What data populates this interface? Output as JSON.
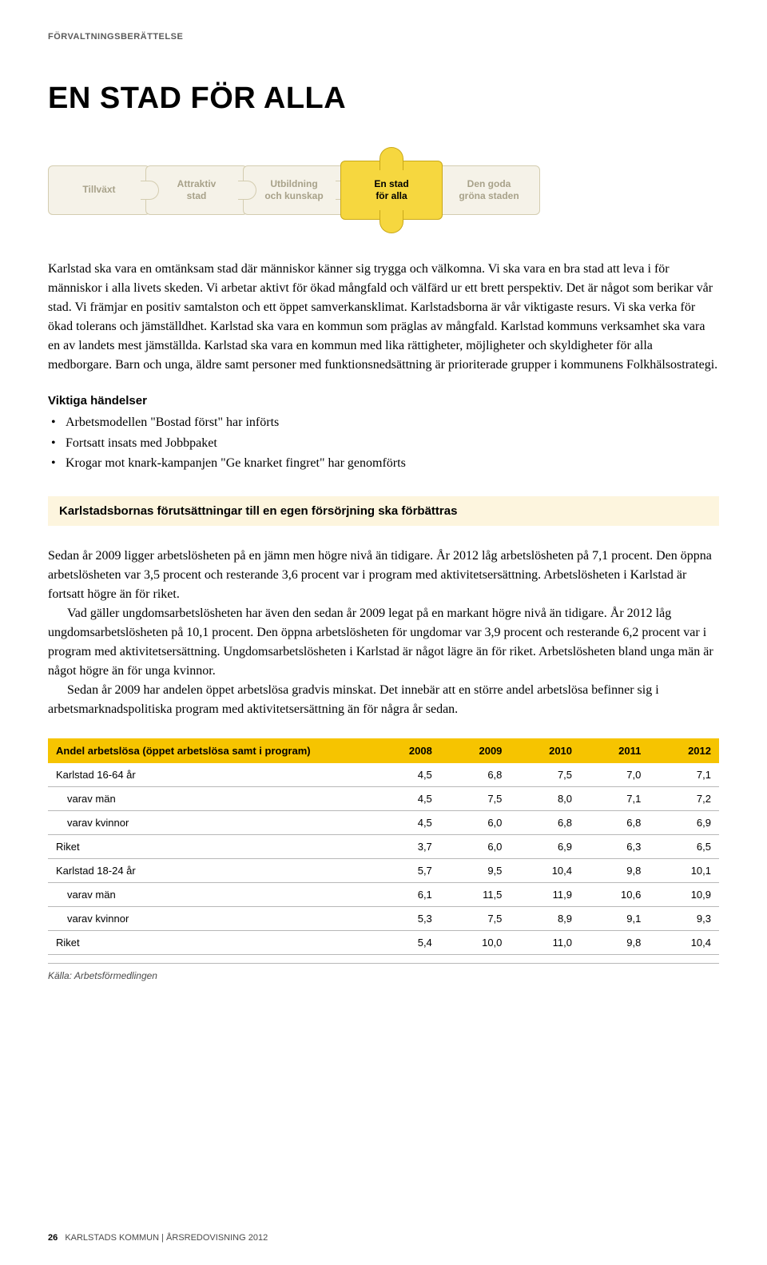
{
  "header_label": "FÖRVALTNINGSBERÄTTELSE",
  "page_title": "EN STAD FÖR ALLA",
  "puzzle": {
    "pieces": [
      {
        "label": "Tillväxt",
        "active": false
      },
      {
        "label": "Attraktiv\nstad",
        "active": false
      },
      {
        "label": "Utbildning\noch kunskap",
        "active": false
      },
      {
        "label": "En stad\nför alla",
        "active": true
      },
      {
        "label": "Den goda\ngröna staden",
        "active": false
      }
    ],
    "inactive_bg": "#f5f2e8",
    "inactive_border": "#d4cdb0",
    "inactive_text": "#a8a28a",
    "active_bg": "#f6d73f",
    "active_border": "#c9a818",
    "active_text": "#000000"
  },
  "intro_paragraph": "Karlstad ska vara en omtänksam stad där människor känner sig trygga och välkomna. Vi ska vara en bra stad att leva i för människor i alla livets skeden. Vi arbetar aktivt för ökad mångfald och välfärd ur ett brett perspektiv. Det är något som berikar vår stad. Vi främjar en positiv samtalston och ett öppet samverkansklimat. Karlstadsborna är vår viktigaste resurs. Vi ska verka för ökad tolerans och jämställdhet. Karlstad ska vara en kommun som präglas av mångfald. Karlstad kommuns verksamhet ska vara en av landets mest jämställda. Karlstad ska vara en kommun med lika rättigheter, möjligheter och skyldigheter för alla medborgare. Barn och unga, äldre samt personer med funktionsnedsättning är prioriterade grupper i kommunens Folkhälsostrategi.",
  "events_heading": "Viktiga händelser",
  "events": [
    "Arbetsmodellen \"Bostad först\" har införts",
    "Fortsatt insats med Jobbpaket",
    "Krogar mot knark-kampanjen \"Ge knarket fingret\" har genomförts"
  ],
  "highlight_box": "Karlstadsbornas förutsättningar till en egen försörjning ska förbättras",
  "body_p1": "Sedan år 2009 ligger arbetslösheten på en jämn men högre nivå än tidigare. År 2012 låg arbetslösheten på 7,1 procent. Den öppna arbetslösheten var 3,5 procent och resterande 3,6 procent var i program med aktivitets­ersättning. Arbetslösheten i Karlstad är fortsatt högre än för riket.",
  "body_p2": "Vad gäller ungdomsarbetslösheten har även den sedan år 2009 legat på en markant högre nivå än tidigare. År 2012 låg ungdomsarbetslösheten på 10,1 procent. Den öppna arbetslösheten för ungdomar var 3,9 procent och resterande 6,2 procent var i program med aktivitetsersättning. Ungdomsarbetslösheten i Karlstad är något lägre än för riket. Arbetslösheten bland unga män är något högre än för unga kvinnor.",
  "body_p3": "Sedan år 2009 har andelen öppet arbetslösa gradvis minskat. Det innebär att en större andel arbetslösa befinner sig i arbetsmarknadspolitiska program med aktivitetsersättning än för några år sedan.",
  "table": {
    "header_bg": "#f6c400",
    "border_color": "#b8b8b8",
    "title_col": "Andel arbetslösa (öppet arbetslösa samt i program)",
    "year_cols": [
      "2008",
      "2009",
      "2010",
      "2011",
      "2012"
    ],
    "rows": [
      {
        "label": "Karlstad 16-64 år",
        "sub": false,
        "values": [
          "4,5",
          "6,8",
          "7,5",
          "7,0",
          "7,1"
        ]
      },
      {
        "label": "varav män",
        "sub": true,
        "values": [
          "4,5",
          "7,5",
          "8,0",
          "7,1",
          "7,2"
        ]
      },
      {
        "label": "varav kvinnor",
        "sub": true,
        "values": [
          "4,5",
          "6,0",
          "6,8",
          "6,8",
          "6,9"
        ]
      },
      {
        "label": "Riket",
        "sub": false,
        "values": [
          "3,7",
          "6,0",
          "6,9",
          "6,3",
          "6,5"
        ]
      },
      {
        "label": "Karlstad 18-24 år",
        "sub": false,
        "values": [
          "5,7",
          "9,5",
          "10,4",
          "9,8",
          "10,1"
        ]
      },
      {
        "label": "varav män",
        "sub": true,
        "values": [
          "6,1",
          "11,5",
          "11,9",
          "10,6",
          "10,9"
        ]
      },
      {
        "label": "varav kvinnor",
        "sub": true,
        "values": [
          "5,3",
          "7,5",
          "8,9",
          "9,1",
          "9,3"
        ]
      },
      {
        "label": "Riket",
        "sub": false,
        "values": [
          "5,4",
          "10,0",
          "11,0",
          "9,8",
          "10,4"
        ]
      }
    ],
    "source": "Källa: Arbetsförmedlingen"
  },
  "footer": {
    "page": "26",
    "text": "KARLSTADS KOMMUN | ÅRSREDOVISNING 2012"
  }
}
